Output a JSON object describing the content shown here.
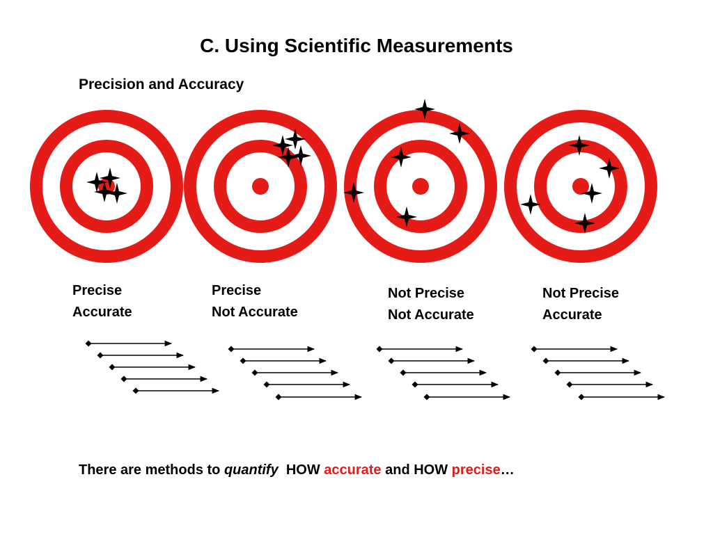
{
  "title": "C. Using Scientific Measurements",
  "subtitle": "Precision and Accuracy",
  "colors": {
    "ring": "#e41b17",
    "white": "#ffffff",
    "mark": "#000000",
    "highlight": "#e41b17"
  },
  "targets": [
    {
      "line1": "Precise",
      "line2": "Accurate"
    },
    {
      "line1": "Precise",
      "line2": "Not Accurate"
    },
    {
      "line1": "Not Precise",
      "line2": "Not Accurate"
    },
    {
      "line1": "Not Precise",
      "line2": "Accurate"
    }
  ],
  "footer": {
    "part1": "There are methods to ",
    "quantify": "quantify",
    "part2": "  HOW ",
    "accurate": "accurate",
    "part3": " and HOW ",
    "precise": "precise",
    "part4": "…"
  }
}
